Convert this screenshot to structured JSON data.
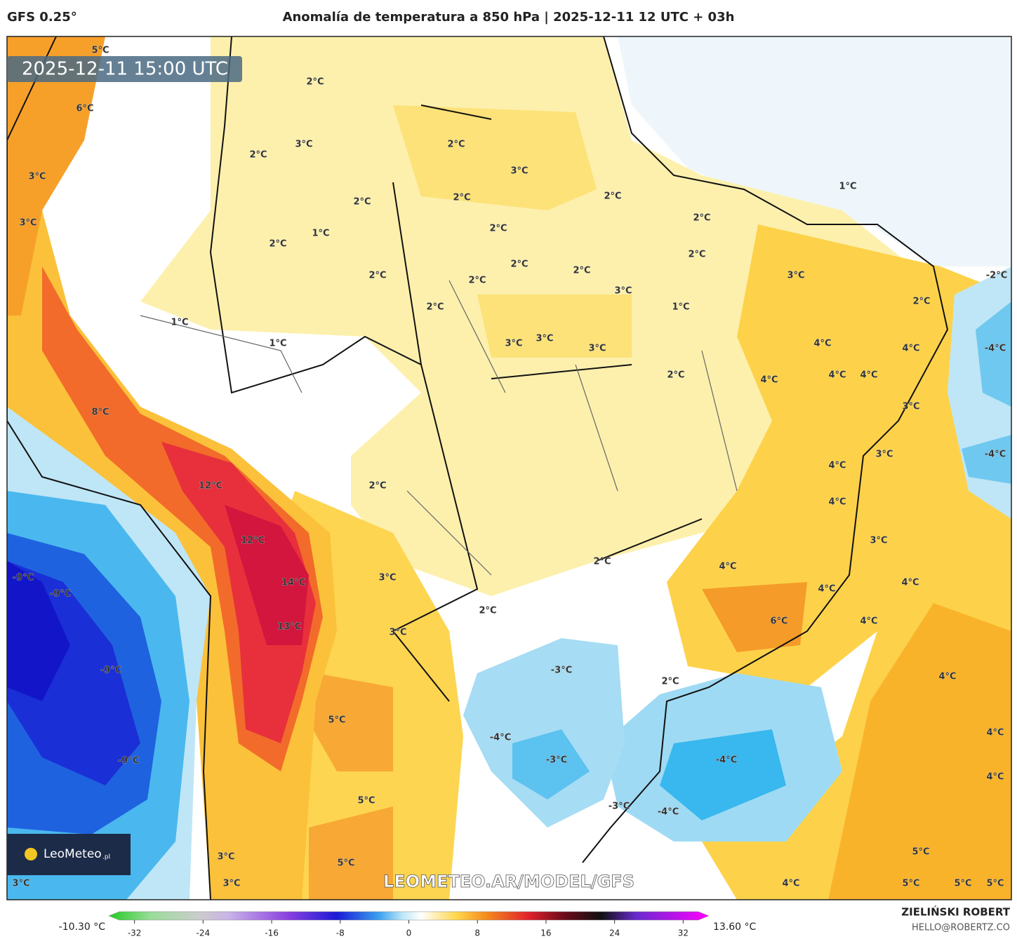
{
  "header": {
    "model": "GFS 0.25°",
    "title": "Anomalía de temperatura a 850 hPa | 2025-12-11 12 UTC + 03h"
  },
  "timestamp": "2025-12-11 15:00 UTC",
  "watermark": "LEOMETEO.AR/MODEL/GFS",
  "logo": {
    "name": "LeoMeteo",
    "suffix": ".pl"
  },
  "contour_labels": [
    "5°C",
    "2°C",
    "6°C",
    "3°C",
    "2°C",
    "2°C",
    "3°C",
    "3°C",
    "2°C",
    "2°C",
    "2°C",
    "1°C",
    "3°C",
    "1°C",
    "2°C",
    "2°C",
    "2°C",
    "2°C",
    "2°C",
    "2°C",
    "2°C",
    "2°C",
    "3°C",
    "3°C",
    "-2°C",
    "2°C",
    "1°C",
    "2°C",
    "1°C",
    "1°C",
    "3°C",
    "3°C",
    "3°C",
    "4°C",
    "4°C",
    "-4°C",
    "2°C",
    "4°C",
    "4°C",
    "4°C",
    "3°C",
    "8°C",
    "3°C",
    "-4°C",
    "4°C",
    "2°C",
    "12°C",
    "4°C",
    "12°C",
    "3°C",
    "3°C",
    "2°C",
    "4°C",
    "-9°C",
    "14°C",
    "4°C",
    "-9°C",
    "4°C",
    "2°C",
    "6°C",
    "4°C",
    "13°C",
    "3°C",
    "-3°C",
    "-9°C",
    "2°C",
    "4°C",
    "5°C",
    "-4°C",
    "4°C",
    "-9°C",
    "-3°C",
    "-4°C",
    "4°C",
    "5°C",
    "-3°C",
    "-4°C",
    "5°C",
    "3°C",
    "5°C",
    "3°C",
    "3°C",
    "4°C",
    "5°C",
    "5°C",
    "5°C"
  ],
  "colorbar": {
    "min_label": "-10.30 °C",
    "max_label": "13.60 °C",
    "lim": [
      -35,
      35
    ],
    "ticks": [
      -32,
      -24,
      -16,
      -8,
      0,
      8,
      16,
      24,
      32
    ]
  },
  "credit": {
    "author": "ZIELIŃSKI ROBERT",
    "email": "HELLO@ROBERTZ.CO"
  }
}
